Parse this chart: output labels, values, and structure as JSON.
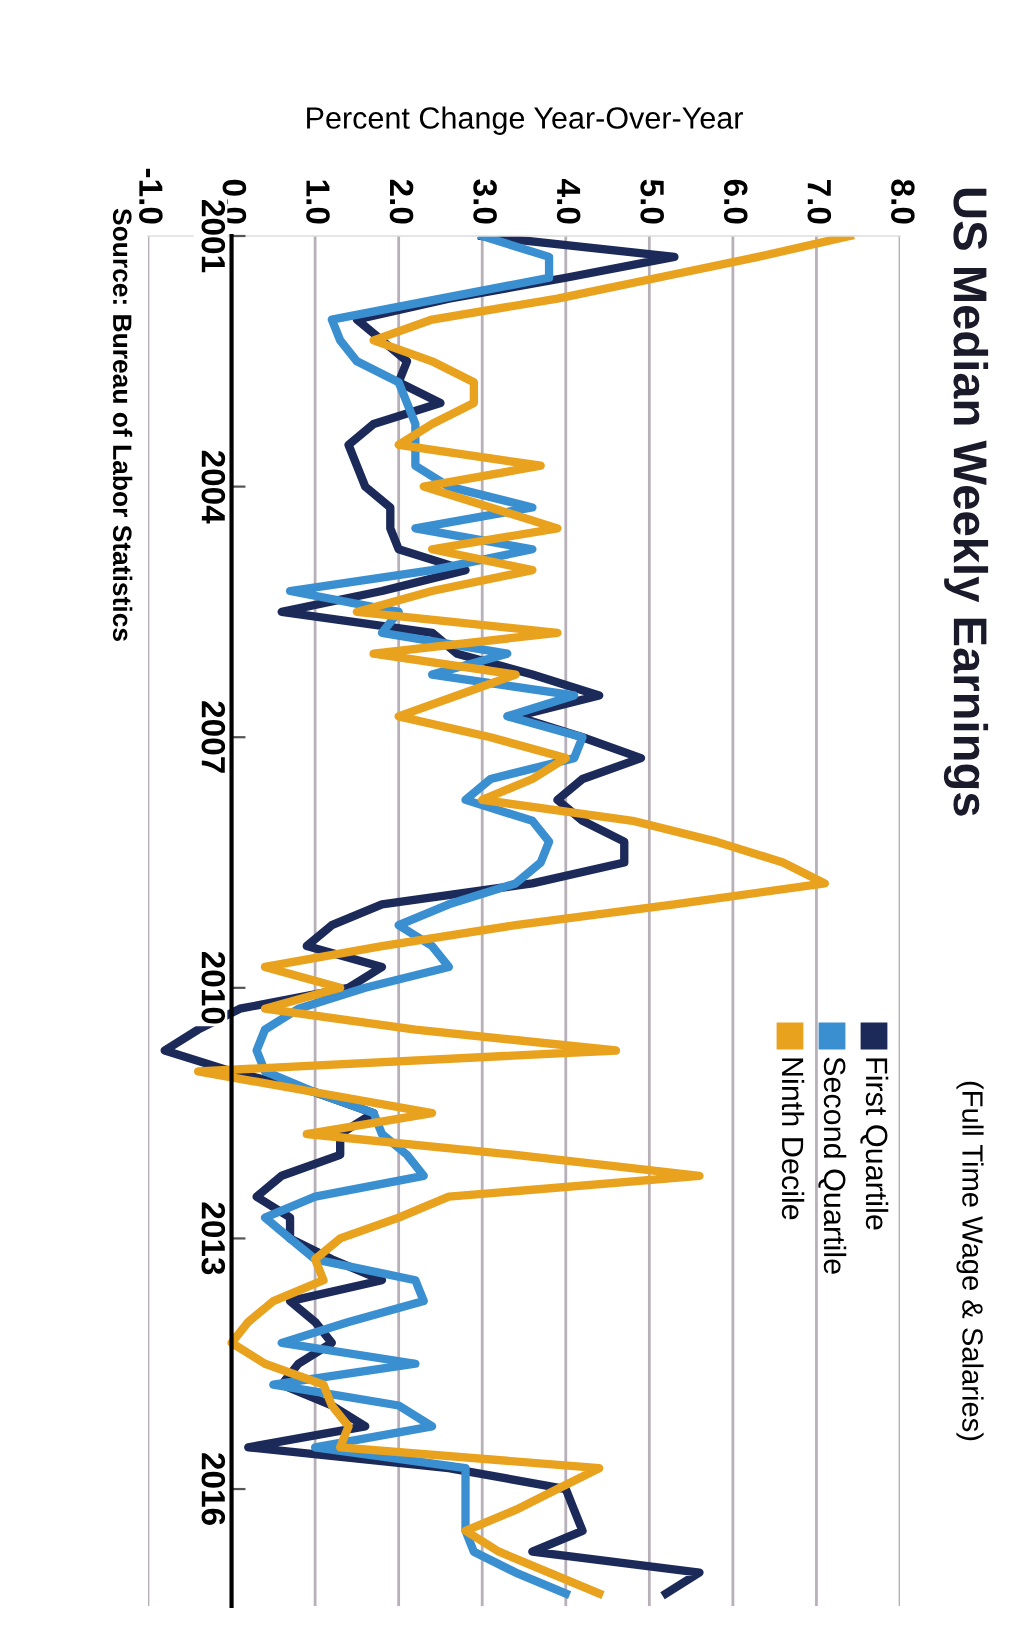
{
  "chart_data": {
    "type": "line",
    "title": "US Median Weekly Earnings",
    "subtitle": "(Full Time Wage & Salaries)",
    "xlabel": "Percent Change Year-Over-Year",
    "annotations": [
      "Source: Bureau of Labor Statistics"
    ],
    "orientation": "horizontal",
    "x": [
      2001.0,
      2001.25,
      2001.5,
      2001.75,
      2002.0,
      2002.25,
      2002.5,
      2002.75,
      2003.0,
      2003.25,
      2003.5,
      2003.75,
      2004.0,
      2004.25,
      2004.5,
      2004.75,
      2005.0,
      2005.25,
      2005.5,
      2005.75,
      2006.0,
      2006.25,
      2006.5,
      2006.75,
      2007.0,
      2007.25,
      2007.5,
      2007.75,
      2008.0,
      2008.25,
      2008.5,
      2008.75,
      2009.0,
      2009.25,
      2009.5,
      2009.75,
      2010.0,
      2010.25,
      2010.5,
      2010.75,
      2011.0,
      2011.25,
      2011.5,
      2011.75,
      2012.0,
      2012.25,
      2012.5,
      2012.75,
      2013.0,
      2013.25,
      2013.5,
      2013.75,
      2014.0,
      2014.25,
      2014.5,
      2014.75,
      2015.0,
      2015.25,
      2015.5,
      2015.75,
      2016.0,
      2016.25,
      2016.5,
      2016.75,
      2017.0,
      2017.25
    ],
    "series": [
      {
        "name": "First Quartile",
        "color": "#1c2a5a",
        "values": [
          3.0,
          5.3,
          4.0,
          2.6,
          1.5,
          1.8,
          2.1,
          2.0,
          2.5,
          1.7,
          1.4,
          1.5,
          1.6,
          1.9,
          1.9,
          2.0,
          2.8,
          1.8,
          0.6,
          2.4,
          2.7,
          3.6,
          4.4,
          3.4,
          4.2,
          4.9,
          4.2,
          3.9,
          4.2,
          4.7,
          4.7,
          3.6,
          1.8,
          1.2,
          0.9,
          1.8,
          1.4,
          0.1,
          -0.4,
          -0.8,
          0.0,
          1.0,
          1.7,
          1.3,
          1.3,
          0.6,
          0.3,
          0.7,
          0.7,
          1.2,
          1.8,
          0.7,
          1.0,
          1.2,
          0.8,
          0.6,
          1.2,
          1.6,
          0.2,
          2.6,
          4.0,
          4.1,
          4.2,
          3.6,
          5.6,
          5.2
        ]
      },
      {
        "name": "Second Quartile",
        "color": "#3a8fd0",
        "values": [
          3.0,
          3.8,
          3.8,
          2.5,
          1.2,
          1.3,
          1.5,
          2.0,
          2.1,
          2.2,
          2.2,
          2.2,
          2.6,
          3.6,
          2.2,
          3.6,
          2.4,
          0.7,
          2.0,
          1.8,
          3.3,
          2.4,
          4.1,
          3.3,
          4.2,
          4.1,
          3.1,
          2.8,
          3.6,
          3.8,
          3.7,
          3.4,
          2.6,
          2.0,
          2.4,
          2.6,
          1.6,
          0.8,
          0.4,
          0.3,
          0.4,
          1.0,
          1.7,
          1.8,
          2.1,
          2.3,
          1.0,
          0.4,
          0.7,
          1.0,
          2.2,
          2.3,
          1.4,
          0.6,
          2.2,
          0.5,
          2.0,
          2.4,
          1.0,
          2.8,
          2.8,
          2.8,
          2.8,
          2.9,
          3.4,
          4.0
        ]
      },
      {
        "name": "Ninth Decile",
        "color": "#e8a21e",
        "values": [
          7.4,
          6.3,
          5.1,
          3.9,
          2.4,
          1.7,
          2.4,
          2.9,
          2.9,
          2.4,
          2.0,
          3.7,
          2.3,
          3.1,
          3.9,
          2.4,
          3.6,
          2.4,
          1.5,
          3.9,
          1.7,
          3.4,
          2.7,
          2.0,
          3.1,
          4.0,
          3.6,
          3.0,
          4.8,
          5.8,
          6.6,
          7.1,
          5.3,
          3.4,
          1.8,
          0.4,
          1.3,
          0.4,
          2.2,
          4.6,
          -0.4,
          1.0,
          2.4,
          0.9,
          3.4,
          5.6,
          2.6,
          2.0,
          1.3,
          1.0,
          1.1,
          0.5,
          0.2,
          0.0,
          0.4,
          1.1,
          1.2,
          1.4,
          1.3,
          4.4,
          3.9,
          3.4,
          2.8,
          3.2,
          3.8,
          4.4
        ]
      }
    ],
    "xlim": [
      -1,
      8
    ],
    "xticks": [
      {
        "value": -1,
        "label": "-1.0"
      },
      {
        "value": 0,
        "label": "0.0"
      },
      {
        "value": 1,
        "label": "1.0"
      },
      {
        "value": 2,
        "label": "2.0"
      },
      {
        "value": 3,
        "label": "3.0"
      },
      {
        "value": 4,
        "label": "4.0"
      },
      {
        "value": 5,
        "label": "5.0"
      },
      {
        "value": 6,
        "label": "6.0"
      },
      {
        "value": 7,
        "label": "7.0"
      },
      {
        "value": 8,
        "label": "8.0"
      }
    ],
    "ylim": [
      2017.4,
      2001
    ],
    "yticks": [
      2001,
      2004,
      2007,
      2010,
      2013,
      2016
    ],
    "grid": "x",
    "legend": "right",
    "marker": "none",
    "line_style": "solid"
  }
}
